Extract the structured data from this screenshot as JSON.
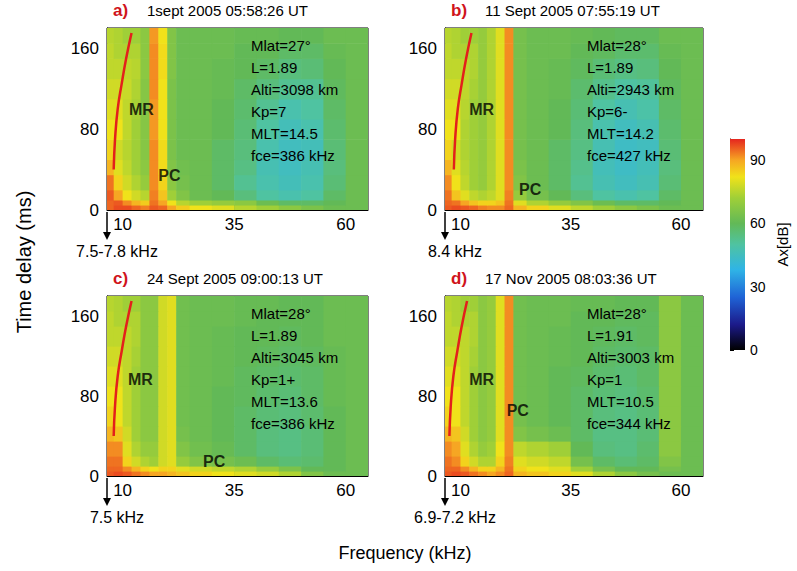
{
  "chart_data": {
    "type": "heatmap",
    "x_label": "Frequency (kHz)",
    "y_label": "Time delay (ms)",
    "xlim": [
      6.5,
      65
    ],
    "ylim": [
      0,
      180
    ],
    "xticks": [
      10,
      35,
      60
    ],
    "yticks": [
      0,
      80,
      160
    ],
    "grid": false,
    "colorbar": {
      "label": "Ax[dB]",
      "range": [
        0,
        100
      ],
      "ticks": [
        0,
        30,
        60,
        90
      ]
    },
    "freq_bins": [
      6.5,
      8,
      10,
      12,
      14,
      16,
      18,
      20,
      22,
      25,
      30,
      35,
      40,
      45,
      50,
      55,
      60,
      65
    ],
    "time_bins": [
      0,
      5,
      10,
      20,
      35,
      50,
      70,
      90,
      110,
      130,
      150,
      165,
      180
    ],
    "panels": [
      {
        "label": "a)",
        "title": "1sept 2005 05:58:26 UT",
        "annotations": [
          "Mlat=27°",
          "L=1.89",
          "Alti=3098 km",
          "Kp=7",
          "MLT=14.5",
          "fce=386 kHz"
        ],
        "arrow_label": "7.5-7.8 kHz",
        "labels": [
          {
            "text": "MR",
            "x": 14.2,
            "y": 99
          },
          {
            "text": "PC",
            "x": 20.5,
            "y": 34
          }
        ],
        "trace": {
          "x": [
            8.0,
            8.3,
            8.9,
            9.8,
            10.8,
            12.0
          ],
          "y": [
            40,
            70,
            100,
            125,
            150,
            175
          ]
        },
        "cells": [
          [
            95,
            97,
            97,
            95,
            93,
            96,
            95,
            90,
            85,
            82,
            80,
            75,
            72,
            68,
            65,
            62,
            62
          ],
          [
            95,
            96,
            92,
            88,
            85,
            94,
            90,
            82,
            75,
            72,
            70,
            68,
            62,
            58,
            58,
            60,
            62
          ],
          [
            96,
            90,
            82,
            78,
            75,
            93,
            86,
            72,
            66,
            62,
            60,
            55,
            50,
            48,
            50,
            58,
            62
          ],
          [
            94,
            84,
            78,
            74,
            70,
            92,
            84,
            68,
            64,
            62,
            58,
            52,
            48,
            46,
            48,
            56,
            62
          ],
          [
            88,
            80,
            76,
            72,
            68,
            92,
            83,
            66,
            63,
            62,
            58,
            54,
            47,
            45,
            47,
            55,
            62
          ],
          [
            84,
            78,
            75,
            72,
            67,
            92,
            83,
            65,
            62,
            62,
            58,
            55,
            48,
            45,
            46,
            56,
            62
          ],
          [
            82,
            82,
            76,
            72,
            67,
            91,
            82,
            65,
            62,
            62,
            60,
            56,
            50,
            46,
            48,
            57,
            62
          ],
          [
            80,
            80,
            76,
            73,
            67,
            91,
            82,
            65,
            62,
            62,
            60,
            57,
            52,
            48,
            50,
            58,
            62
          ],
          [
            78,
            78,
            77,
            74,
            67,
            92,
            82,
            65,
            62,
            62,
            61,
            58,
            55,
            52,
            52,
            59,
            62
          ],
          [
            76,
            76,
            76,
            75,
            68,
            92,
            83,
            66,
            62,
            62,
            61,
            60,
            58,
            55,
            56,
            60,
            62
          ],
          [
            76,
            74,
            74,
            74,
            68,
            92,
            83,
            66,
            62,
            62,
            62,
            60,
            60,
            58,
            58,
            61,
            62
          ],
          [
            75,
            74,
            72,
            72,
            68,
            91,
            82,
            66,
            62,
            62,
            62,
            61,
            61,
            60,
            60,
            62,
            62
          ]
        ]
      },
      {
        "label": "b)",
        "title": "11 Sept 2005 07:55:19 UT",
        "annotations": [
          "Mlat=28°",
          "L=1.89",
          "Alti=2943 km",
          "Kp=6-",
          "MLT=14.2",
          "fce=427 kHz"
        ],
        "arrow_label": "8.4 kHz",
        "labels": [
          {
            "text": "MR",
            "x": 14.8,
            "y": 99
          },
          {
            "text": "PC",
            "x": 25.8,
            "y": 20
          }
        ],
        "trace": {
          "x": [
            8.5,
            8.8,
            9.4,
            10.3,
            11.3,
            12.5
          ],
          "y": [
            40,
            70,
            100,
            125,
            150,
            175
          ]
        },
        "cells": [
          [
            96,
            97,
            96,
            95,
            93,
            92,
            92,
            95,
            88,
            84,
            80,
            76,
            72,
            68,
            65,
            62,
            62
          ],
          [
            95,
            94,
            90,
            86,
            84,
            84,
            86,
            94,
            80,
            74,
            70,
            66,
            62,
            58,
            58,
            60,
            62
          ],
          [
            94,
            86,
            80,
            76,
            74,
            76,
            80,
            93,
            70,
            64,
            60,
            55,
            50,
            48,
            50,
            58,
            62
          ],
          [
            92,
            82,
            76,
            72,
            70,
            74,
            80,
            92,
            66,
            62,
            58,
            52,
            47,
            45,
            47,
            56,
            62
          ],
          [
            88,
            80,
            75,
            72,
            70,
            74,
            80,
            92,
            65,
            62,
            58,
            53,
            46,
            44,
            46,
            55,
            62
          ],
          [
            84,
            78,
            74,
            72,
            70,
            74,
            80,
            92,
            64,
            62,
            58,
            54,
            47,
            44,
            45,
            56,
            62
          ],
          [
            82,
            82,
            74,
            72,
            70,
            74,
            80,
            92,
            64,
            62,
            60,
            55,
            48,
            45,
            47,
            57,
            62
          ],
          [
            80,
            80,
            75,
            72,
            70,
            74,
            80,
            92,
            64,
            62,
            60,
            56,
            50,
            47,
            49,
            58,
            62
          ],
          [
            78,
            78,
            76,
            73,
            70,
            74,
            80,
            92,
            64,
            62,
            61,
            57,
            53,
            50,
            51,
            59,
            62
          ],
          [
            76,
            76,
            76,
            74,
            70,
            74,
            80,
            92,
            64,
            62,
            61,
            59,
            56,
            54,
            55,
            60,
            62
          ],
          [
            76,
            74,
            74,
            74,
            70,
            74,
            80,
            92,
            64,
            62,
            62,
            60,
            59,
            57,
            57,
            61,
            62
          ],
          [
            75,
            74,
            72,
            72,
            70,
            74,
            80,
            92,
            64,
            62,
            62,
            61,
            60,
            59,
            59,
            62,
            62
          ]
        ]
      },
      {
        "label": "c)",
        "title": "24 Sept 2005 09:00:13 UT",
        "annotations": [
          "Mlat=28°",
          "L=1.89",
          "Alti=3045 km",
          "Kp=1+",
          "MLT=13.6",
          "fce=386 kHz"
        ],
        "arrow_label": "7.5 kHz",
        "labels": [
          {
            "text": "MR",
            "x": 14.0,
            "y": 97
          },
          {
            "text": "PC",
            "x": 30.5,
            "y": 15
          }
        ],
        "trace": {
          "x": [
            8.0,
            8.3,
            8.9,
            9.8,
            10.8,
            12.0
          ],
          "y": [
            40,
            70,
            100,
            125,
            150,
            175
          ]
        },
        "cells": [
          [
            96,
            97,
            96,
            94,
            92,
            90,
            90,
            88,
            86,
            84,
            82,
            80,
            78,
            74,
            66,
            62,
            62
          ],
          [
            95,
            95,
            92,
            88,
            84,
            82,
            84,
            84,
            80,
            78,
            76,
            74,
            70,
            65,
            60,
            60,
            62
          ],
          [
            94,
            94,
            84,
            78,
            74,
            72,
            78,
            80,
            70,
            66,
            64,
            62,
            58,
            56,
            57,
            60,
            62
          ],
          [
            92,
            92,
            80,
            74,
            70,
            70,
            78,
            80,
            66,
            63,
            61,
            58,
            55,
            54,
            56,
            60,
            62
          ],
          [
            88,
            86,
            78,
            72,
            68,
            68,
            78,
            80,
            64,
            62,
            60,
            58,
            55,
            54,
            56,
            60,
            62
          ],
          [
            84,
            82,
            76,
            72,
            68,
            68,
            78,
            80,
            63,
            62,
            60,
            58,
            56,
            55,
            57,
            60,
            62
          ],
          [
            82,
            82,
            76,
            72,
            68,
            68,
            78,
            80,
            63,
            62,
            60,
            59,
            57,
            56,
            58,
            61,
            62
          ],
          [
            80,
            80,
            76,
            72,
            68,
            68,
            78,
            80,
            63,
            62,
            61,
            59,
            58,
            57,
            58,
            61,
            62
          ],
          [
            78,
            78,
            76,
            73,
            68,
            68,
            78,
            80,
            63,
            62,
            61,
            60,
            59,
            58,
            59,
            61,
            62
          ],
          [
            76,
            76,
            76,
            74,
            68,
            68,
            78,
            80,
            63,
            62,
            61,
            60,
            60,
            59,
            60,
            62,
            62
          ],
          [
            76,
            74,
            74,
            74,
            68,
            68,
            78,
            80,
            63,
            62,
            62,
            61,
            60,
            60,
            60,
            62,
            62
          ],
          [
            75,
            74,
            72,
            72,
            68,
            68,
            78,
            80,
            63,
            62,
            62,
            61,
            61,
            60,
            60,
            62,
            62
          ]
        ]
      },
      {
        "label": "d)",
        "title": "17 Nov 2005 08:03:36 UT",
        "annotations": [
          "Mlat=28°",
          "L=1.91",
          "Alti=3003 km",
          "Kp=1",
          "MLT=10.5",
          "fce=344 kHz"
        ],
        "arrow_label": "6.9-7.2 kHz",
        "labels": [
          {
            "text": "MR",
            "x": 14.8,
            "y": 97
          },
          {
            "text": "PC",
            "x": 23.0,
            "y": 66
          }
        ],
        "trace": {
          "x": [
            7.5,
            7.8,
            8.4,
            9.3,
            10.3,
            11.5
          ],
          "y": [
            40,
            70,
            100,
            125,
            150,
            175
          ]
        },
        "cells": [
          [
            96,
            97,
            96,
            94,
            92,
            90,
            92,
            95,
            88,
            86,
            84,
            80,
            74,
            68,
            64,
            62,
            62
          ],
          [
            95,
            95,
            92,
            88,
            84,
            84,
            88,
            94,
            84,
            82,
            80,
            72,
            64,
            60,
            60,
            64,
            62
          ],
          [
            94,
            92,
            84,
            78,
            74,
            74,
            84,
            93,
            80,
            78,
            76,
            64,
            58,
            56,
            58,
            66,
            62
          ],
          [
            92,
            90,
            80,
            74,
            70,
            72,
            82,
            92,
            76,
            74,
            72,
            60,
            55,
            54,
            57,
            68,
            62
          ],
          [
            88,
            86,
            78,
            72,
            68,
            70,
            80,
            92,
            66,
            64,
            62,
            58,
            54,
            54,
            56,
            68,
            62
          ],
          [
            84,
            82,
            76,
            72,
            68,
            70,
            80,
            92,
            64,
            62,
            60,
            58,
            55,
            54,
            56,
            68,
            62
          ],
          [
            82,
            82,
            76,
            72,
            68,
            70,
            80,
            92,
            63,
            62,
            60,
            58,
            56,
            55,
            57,
            68,
            62
          ],
          [
            80,
            80,
            76,
            72,
            68,
            70,
            80,
            92,
            63,
            62,
            60,
            59,
            57,
            56,
            58,
            68,
            62
          ],
          [
            78,
            78,
            76,
            73,
            68,
            70,
            80,
            92,
            63,
            62,
            61,
            60,
            58,
            57,
            58,
            68,
            62
          ],
          [
            76,
            76,
            76,
            74,
            68,
            70,
            80,
            92,
            63,
            62,
            61,
            60,
            59,
            58,
            59,
            68,
            62
          ],
          [
            76,
            74,
            74,
            74,
            68,
            70,
            80,
            92,
            63,
            62,
            62,
            60,
            60,
            59,
            59,
            68,
            62
          ],
          [
            75,
            74,
            72,
            72,
            68,
            70,
            80,
            92,
            63,
            62,
            62,
            61,
            61,
            60,
            60,
            68,
            62
          ]
        ]
      }
    ]
  }
}
